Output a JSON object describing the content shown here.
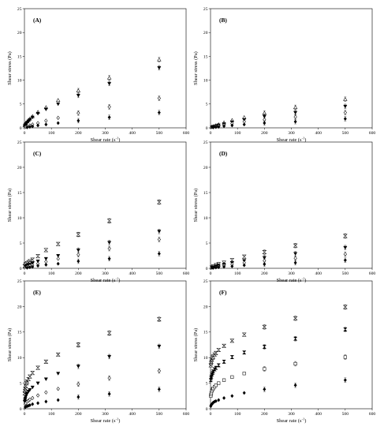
{
  "chart_data": [
    {
      "type": "scatter",
      "panel": "(A)",
      "xlabel": "Shear rate (s",
      "xlabel_sup": "-1",
      "xlabel_end": ")",
      "ylabel": "Shear stress (Pa)",
      "xlim": [
        0,
        600
      ],
      "ylim": [
        0,
        25
      ],
      "xticks": [
        0,
        100,
        200,
        300,
        400,
        500,
        600
      ],
      "yticks": [
        0,
        5,
        10,
        15,
        20,
        25
      ],
      "series": [
        {
          "marker": "triangle-up-open",
          "x": [
            1,
            3,
            5,
            10,
            15,
            20,
            30,
            50,
            80,
            125,
            200,
            315,
            500
          ],
          "y": [
            0.5,
            0.8,
            1.0,
            1.3,
            1.6,
            1.9,
            2.4,
            3.3,
            4.3,
            5.8,
            7.8,
            10.5,
            14.3
          ]
        },
        {
          "marker": "triangle-down-filled",
          "x": [
            1,
            3,
            5,
            10,
            15,
            20,
            30,
            50,
            80,
            125,
            200,
            315,
            500
          ],
          "y": [
            0.4,
            0.6,
            0.8,
            1.1,
            1.4,
            1.7,
            2.2,
            3.0,
            3.9,
            5.0,
            6.8,
            9.3,
            12.6
          ]
        },
        {
          "marker": "diamond-open",
          "x": [
            5,
            10,
            20,
            30,
            50,
            80,
            125,
            200,
            315,
            500
          ],
          "y": [
            0.2,
            0.3,
            0.5,
            0.7,
            1.0,
            1.5,
            2.1,
            3.1,
            4.4,
            6.2
          ]
        },
        {
          "marker": "diamond-filled",
          "x": [
            10,
            20,
            30,
            50,
            80,
            125,
            200,
            315,
            500
          ],
          "y": [
            0.1,
            0.2,
            0.3,
            0.5,
            0.7,
            1.0,
            1.5,
            2.2,
            3.2
          ]
        }
      ]
    },
    {
      "type": "scatter",
      "panel": "(B)",
      "xlabel": "Shear rate (s",
      "xlabel_sup": "-1",
      "xlabel_end": ")",
      "ylabel": "Shear stress (Pa)",
      "xlim": [
        0,
        600
      ],
      "ylim": [
        0,
        25
      ],
      "xticks": [
        0,
        100,
        200,
        300,
        400,
        500,
        600
      ],
      "yticks": [
        0,
        5,
        10,
        15,
        20,
        25
      ],
      "series": [
        {
          "marker": "triangle-up-open",
          "x": [
            5,
            10,
            20,
            30,
            50,
            80,
            125,
            200,
            315,
            500
          ],
          "y": [
            0.2,
            0.3,
            0.5,
            0.7,
            1.1,
            1.6,
            2.2,
            3.1,
            4.3,
            6.0
          ]
        },
        {
          "marker": "triangle-down-filled",
          "x": [
            5,
            10,
            20,
            30,
            50,
            80,
            125,
            200,
            315,
            500
          ],
          "y": [
            0.15,
            0.25,
            0.4,
            0.55,
            0.8,
            1.2,
            1.7,
            2.4,
            3.2,
            4.5
          ]
        },
        {
          "marker": "diamond-open",
          "x": [
            10,
            20,
            30,
            50,
            80,
            125,
            200,
            315,
            500
          ],
          "y": [
            0.15,
            0.3,
            0.4,
            0.6,
            0.9,
            1.3,
            1.7,
            2.3,
            3.2
          ]
        },
        {
          "marker": "diamond-filled",
          "x": [
            10,
            20,
            30,
            50,
            80,
            125,
            200,
            315,
            500
          ],
          "y": [
            0.1,
            0.15,
            0.2,
            0.35,
            0.5,
            0.7,
            1.0,
            1.3,
            1.9
          ]
        }
      ]
    },
    {
      "type": "scatter",
      "panel": "(C)",
      "xlabel": "Shear rate (s",
      "xlabel_sup": "-1",
      "xlabel_end": ")",
      "ylabel": "Shear stress (Pa)",
      "xlim": [
        0,
        600
      ],
      "ylim": [
        0,
        25
      ],
      "xticks": [
        0,
        100,
        200,
        300,
        400,
        500,
        600
      ],
      "yticks": [
        0,
        5,
        10,
        15,
        20,
        25
      ],
      "series": [
        {
          "marker": "hourglass-open",
          "x": [
            1,
            3,
            5,
            10,
            15,
            20,
            30,
            50,
            80,
            125,
            200,
            315,
            500
          ],
          "y": [
            0.4,
            0.6,
            0.8,
            1.0,
            1.2,
            1.4,
            1.7,
            2.4,
            3.6,
            4.8,
            6.7,
            9.4,
            13.1
          ]
        },
        {
          "marker": "triangle-down-filled",
          "x": [
            5,
            10,
            20,
            30,
            50,
            80,
            125,
            200,
            315,
            500
          ],
          "y": [
            0.4,
            0.6,
            0.8,
            1.0,
            1.4,
            1.9,
            2.5,
            3.6,
            5.1,
            7.3
          ]
        },
        {
          "marker": "diamond-open",
          "x": [
            10,
            20,
            30,
            50,
            80,
            125,
            200,
            315,
            500
          ],
          "y": [
            0.3,
            0.5,
            0.6,
            0.9,
            1.3,
            1.9,
            2.7,
            3.9,
            5.7
          ]
        },
        {
          "marker": "diamond-filled",
          "x": [
            10,
            20,
            30,
            50,
            80,
            125,
            200,
            315,
            500
          ],
          "y": [
            0.1,
            0.2,
            0.3,
            0.5,
            0.7,
            0.9,
            1.4,
            1.9,
            2.9
          ]
        }
      ]
    },
    {
      "type": "scatter",
      "panel": "(D)",
      "xlabel": "Shear rate (s",
      "xlabel_sup": "-1",
      "xlabel_end": ")",
      "ylabel": "Shear stress (Pa)",
      "xlim": [
        0,
        600
      ],
      "ylim": [
        0,
        25
      ],
      "xticks": [
        0,
        100,
        200,
        300,
        400,
        500,
        600
      ],
      "yticks": [
        0,
        5,
        10,
        15,
        20,
        25
      ],
      "series": [
        {
          "marker": "hourglass-open",
          "x": [
            5,
            10,
            20,
            30,
            50,
            80,
            125,
            200,
            315,
            500
          ],
          "y": [
            0.2,
            0.35,
            0.6,
            0.8,
            1.1,
            1.6,
            2.3,
            3.2,
            4.5,
            6.4
          ]
        },
        {
          "marker": "triangle-down-filled",
          "x": [
            5,
            10,
            20,
            30,
            50,
            80,
            125,
            200,
            315,
            500
          ],
          "y": [
            0.15,
            0.25,
            0.4,
            0.55,
            0.8,
            1.1,
            1.5,
            2.1,
            2.9,
            4.1
          ]
        },
        {
          "marker": "diamond-open",
          "x": [
            10,
            20,
            30,
            50,
            80,
            125,
            200,
            315,
            500
          ],
          "y": [
            0.15,
            0.25,
            0.35,
            0.55,
            0.8,
            1.1,
            1.5,
            2.0,
            2.8
          ]
        },
        {
          "marker": "diamond-filled",
          "x": [
            10,
            20,
            30,
            50,
            80,
            125,
            200,
            315,
            500
          ],
          "y": [
            0.1,
            0.15,
            0.2,
            0.3,
            0.4,
            0.6,
            0.8,
            1.1,
            1.6
          ]
        }
      ]
    },
    {
      "type": "scatter",
      "panel": "(E)",
      "xlabel": "Shear rate (s",
      "xlabel_sup": "-1",
      "xlabel_end": ")",
      "ylabel": "Shear stress (Pa)",
      "xlim": [
        0,
        600
      ],
      "ylim": [
        0,
        25
      ],
      "xticks": [
        0,
        100,
        200,
        300,
        400,
        500,
        600
      ],
      "yticks": [
        0,
        5,
        10,
        15,
        20,
        25
      ],
      "series": [
        {
          "marker": "hourglass-open",
          "x": [
            1,
            2,
            3,
            5,
            8,
            10,
            15,
            20,
            30,
            50,
            80,
            125,
            200,
            315,
            500
          ],
          "y": [
            3.0,
            3.5,
            3.9,
            4.4,
            5.0,
            5.3,
            5.8,
            6.3,
            7.0,
            8.0,
            9.2,
            10.6,
            12.5,
            14.8,
            17.5
          ]
        },
        {
          "marker": "triangle-down-filled",
          "x": [
            1,
            2,
            3,
            5,
            8,
            10,
            15,
            20,
            30,
            50,
            80,
            125,
            200,
            315,
            500
          ],
          "y": [
            1.4,
            1.7,
            2.0,
            2.4,
            2.8,
            3.0,
            3.4,
            3.7,
            4.2,
            5.0,
            5.8,
            6.9,
            8.3,
            10.2,
            12.2
          ]
        },
        {
          "marker": "diamond-open",
          "x": [
            3,
            5,
            10,
            15,
            20,
            30,
            50,
            80,
            125,
            200,
            315,
            500
          ],
          "y": [
            0.9,
            1.1,
            1.4,
            1.6,
            1.8,
            2.1,
            2.6,
            3.2,
            3.9,
            4.8,
            6.0,
            7.4
          ]
        },
        {
          "marker": "diamond-filled",
          "x": [
            3,
            5,
            10,
            15,
            20,
            30,
            50,
            80,
            125,
            200,
            315,
            500
          ],
          "y": [
            0.3,
            0.4,
            0.5,
            0.6,
            0.7,
            0.9,
            1.1,
            1.4,
            1.7,
            2.3,
            2.9,
            3.8
          ]
        }
      ]
    },
    {
      "type": "scatter",
      "panel": "(F)",
      "xlabel": "Shear rate (s",
      "xlabel_sup": "-1",
      "xlabel_end": ")",
      "ylabel": "Shear stress (Pa)",
      "xlim": [
        0,
        600
      ],
      "ylim": [
        0,
        25
      ],
      "xticks": [
        0,
        100,
        200,
        300,
        400,
        500,
        600
      ],
      "yticks": [
        0,
        5,
        10,
        15,
        20,
        25
      ],
      "series": [
        {
          "marker": "hourglass-open",
          "x": [
            1,
            2,
            3,
            5,
            8,
            10,
            15,
            20,
            30,
            50,
            80,
            125,
            200,
            315,
            500
          ],
          "y": [
            8.5,
            8.9,
            9.2,
            9.6,
            10.0,
            10.2,
            10.6,
            10.9,
            11.5,
            12.3,
            13.3,
            14.5,
            16.0,
            17.7,
            19.9
          ]
        },
        {
          "marker": "hourglass-filled",
          "x": [
            1,
            2,
            3,
            5,
            8,
            10,
            15,
            20,
            30,
            50,
            80,
            125,
            200,
            315,
            500
          ],
          "y": [
            5.6,
            6.0,
            6.3,
            6.7,
            7.0,
            7.3,
            7.7,
            8.0,
            8.5,
            9.2,
            10.1,
            11.0,
            12.1,
            13.7,
            15.5
          ]
        },
        {
          "marker": "square-open",
          "x": [
            1,
            2,
            3,
            5,
            8,
            10,
            15,
            20,
            30,
            50,
            80,
            125,
            200,
            315,
            500
          ],
          "y": [
            2.5,
            2.8,
            3.1,
            3.5,
            3.8,
            4.0,
            4.3,
            4.6,
            5.0,
            5.6,
            6.2,
            6.9,
            7.8,
            8.8,
            10.1
          ]
        },
        {
          "marker": "diamond-filled",
          "x": [
            1,
            2,
            3,
            5,
            8,
            10,
            15,
            20,
            30,
            50,
            80,
            125,
            200,
            315,
            500
          ],
          "y": [
            0.5,
            0.7,
            0.8,
            0.9,
            1.1,
            1.2,
            1.4,
            1.5,
            1.7,
            2.1,
            2.5,
            3.1,
            3.8,
            4.6,
            5.6
          ]
        }
      ]
    }
  ]
}
